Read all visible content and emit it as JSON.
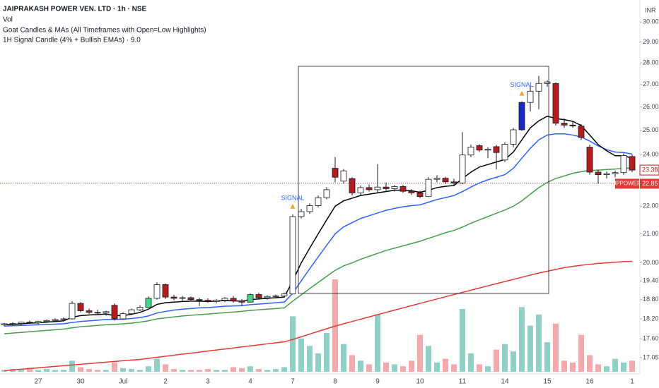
{
  "chart_data": {
    "type": "candlestick",
    "title": "JAIPRAKASH POWER VEN. LTD · 1h · NSE",
    "indicators": [
      "Vol",
      "Goat Candles & MAs (All Timeframes with Open=Low Highlights)",
      "1H Signal Candle (4% + Bullish EMAs) · 9.0"
    ],
    "currency": "INR",
    "categories": [
      null,
      null,
      null,
      null,
      "27",
      null,
      null,
      null,
      null,
      "30",
      null,
      null,
      null,
      null,
      "Jul",
      null,
      null,
      null,
      null,
      "2",
      null,
      null,
      null,
      null,
      "3",
      null,
      null,
      null,
      null,
      "4",
      null,
      null,
      null,
      null,
      "7",
      null,
      null,
      null,
      null,
      "8",
      null,
      null,
      null,
      null,
      "9",
      null,
      null,
      null,
      null,
      "10",
      null,
      null,
      null,
      null,
      "11",
      null,
      null,
      null,
      null,
      "14",
      null,
      null,
      null,
      null,
      "15",
      null,
      null,
      null,
      null,
      "16",
      null,
      null,
      null,
      null,
      "1"
    ],
    "open": [
      18.02,
      18.05,
      18.06,
      18.1,
      18.08,
      18.12,
      18.15,
      18.18,
      18.2,
      18.68,
      18.45,
      18.4,
      18.38,
      18.62,
      18.2,
      18.36,
      18.48,
      18.56,
      18.84,
      19.28,
      18.88,
      18.84,
      18.86,
      18.8,
      18.78,
      18.74,
      18.78,
      18.84,
      18.76,
      18.72,
      18.96,
      18.86,
      18.9,
      18.92,
      18.98,
      21.62,
      21.8,
      22.02,
      22.32,
      23.45,
      22.95,
      23.05,
      22.5,
      22.7,
      22.62,
      22.72,
      22.66,
      22.74,
      22.56,
      22.5,
      22.36,
      23.02,
      23.06,
      22.92,
      22.88,
      23.98,
      24.36,
      24.18,
      24.32,
      23.78,
      24.42,
      25.02,
      26.2,
      26.7,
      27.05,
      27.05,
      25.3,
      25.22,
      25.18,
      24.3,
      23.3,
      23.2,
      23.24,
      23.28,
      23.92
    ],
    "high": [
      18.08,
      18.1,
      18.12,
      18.15,
      18.14,
      18.18,
      18.22,
      18.25,
      18.75,
      18.72,
      18.52,
      18.48,
      18.45,
      18.68,
      18.4,
      18.52,
      18.62,
      18.9,
      19.35,
      19.32,
      18.95,
      18.92,
      18.9,
      18.86,
      18.84,
      18.82,
      18.88,
      18.92,
      18.82,
      19.0,
      19.02,
      18.94,
      18.96,
      19.02,
      21.7,
      21.9,
      22.1,
      22.4,
      22.72,
      23.9,
      23.42,
      23.1,
      22.78,
      22.82,
      23.62,
      22.9,
      22.8,
      22.8,
      22.64,
      22.58,
      23.1,
      23.18,
      23.12,
      23.04,
      24.92,
      24.4,
      24.42,
      24.3,
      24.4,
      24.5,
      25.1,
      26.25,
      26.9,
      27.4,
      27.2,
      27.1,
      25.5,
      25.4,
      25.26,
      24.4,
      23.4,
      23.32,
      23.36,
      24.05,
      24.0
    ],
    "low": [
      17.98,
      18.0,
      18.02,
      18.05,
      18.04,
      18.08,
      18.1,
      18.12,
      18.18,
      18.4,
      18.35,
      18.32,
      18.3,
      18.15,
      18.18,
      18.32,
      18.44,
      18.56,
      18.8,
      18.82,
      18.78,
      18.76,
      18.74,
      18.6,
      18.7,
      18.68,
      18.72,
      18.7,
      18.6,
      18.72,
      18.8,
      18.8,
      18.84,
      18.86,
      18.96,
      21.55,
      21.72,
      21.95,
      22.25,
      22.9,
      22.85,
      22.4,
      22.38,
      22.55,
      22.52,
      22.58,
      22.55,
      22.5,
      22.42,
      22.3,
      22.34,
      22.9,
      22.84,
      22.78,
      22.84,
      23.9,
      24.1,
      23.85,
      23.4,
      23.7,
      24.3,
      24.98,
      25.8,
      25.9,
      26.9,
      25.2,
      25.1,
      25.1,
      24.6,
      23.2,
      22.85,
      23.05,
      23.1,
      23.2,
      23.3
    ],
    "close": [
      18.05,
      18.06,
      18.1,
      18.08,
      18.12,
      18.15,
      18.18,
      18.2,
      18.68,
      18.45,
      18.4,
      18.38,
      18.42,
      18.2,
      18.36,
      18.48,
      18.56,
      18.84,
      19.28,
      18.88,
      18.84,
      18.86,
      18.8,
      18.78,
      18.74,
      18.78,
      18.84,
      18.76,
      18.72,
      18.96,
      18.86,
      18.9,
      18.92,
      18.98,
      21.62,
      21.8,
      22.02,
      22.32,
      22.62,
      23.1,
      23.35,
      22.5,
      22.7,
      22.62,
      22.72,
      22.66,
      22.74,
      22.56,
      22.5,
      22.36,
      23.02,
      23.06,
      22.92,
      22.88,
      23.98,
      24.3,
      24.18,
      24.22,
      24.08,
      24.42,
      25.02,
      26.2,
      26.7,
      27.05,
      27.12,
      25.3,
      25.22,
      25.18,
      24.7,
      23.3,
      23.2,
      23.24,
      23.28,
      23.96,
      23.38
    ],
    "up_color": "#ffffff",
    "down_color": "#b71c1c",
    "wick_color": "#131722",
    "highlights": [
      {
        "candle": 17,
        "color": "#3ddc84"
      },
      {
        "candle": 29,
        "color": "#3ddc84"
      },
      {
        "candle": 61,
        "color": "#1a2bc4"
      }
    ],
    "signals": {
      "label": "SIGNAL",
      "text_color": "#2962ff",
      "marker_color": "#f5a623",
      "candles": [
        34,
        61
      ]
    },
    "lines": [
      {
        "color": "#e53935",
        "values": [
          16.68,
          16.7,
          16.72,
          16.74,
          16.76,
          16.78,
          16.8,
          16.82,
          16.84,
          16.86,
          16.88,
          16.9,
          16.92,
          16.94,
          16.96,
          16.98,
          17.0,
          17.03,
          17.06,
          17.09,
          17.12,
          17.15,
          17.18,
          17.21,
          17.24,
          17.27,
          17.3,
          17.33,
          17.36,
          17.39,
          17.42,
          17.45,
          17.48,
          17.51,
          17.58,
          17.66,
          17.74,
          17.82,
          17.9,
          17.98,
          18.05,
          18.12,
          18.19,
          18.26,
          18.33,
          18.4,
          18.47,
          18.54,
          18.61,
          18.68,
          18.75,
          18.82,
          18.89,
          18.96,
          19.03,
          19.1,
          19.17,
          19.24,
          19.31,
          19.38,
          19.45,
          19.52,
          19.59,
          19.66,
          19.72,
          19.78,
          19.84,
          19.88,
          19.92,
          19.95,
          19.98,
          20.0,
          20.02,
          20.04,
          20.05
        ]
      },
      {
        "color": "#43a047",
        "values": [
          17.75,
          17.77,
          17.79,
          17.81,
          17.83,
          17.85,
          17.87,
          17.89,
          17.93,
          17.96,
          17.98,
          18.0,
          18.02,
          18.03,
          18.05,
          18.07,
          18.1,
          18.14,
          18.2,
          18.23,
          18.26,
          18.29,
          18.31,
          18.33,
          18.35,
          18.37,
          18.39,
          18.41,
          18.43,
          18.46,
          18.48,
          18.5,
          18.52,
          18.54,
          18.75,
          18.95,
          19.15,
          19.35,
          19.55,
          19.75,
          19.9,
          20.0,
          20.12,
          20.22,
          20.32,
          20.42,
          20.5,
          20.58,
          20.66,
          20.74,
          20.84,
          20.94,
          21.04,
          21.12,
          21.24,
          21.38,
          21.5,
          21.62,
          21.74,
          21.86,
          22.0,
          22.2,
          22.45,
          22.7,
          22.9,
          23.05,
          23.15,
          23.25,
          23.32,
          23.36,
          23.38,
          23.4,
          23.42,
          23.45,
          23.46
        ]
      },
      {
        "color": "#2962ff",
        "values": [
          17.98,
          17.99,
          18.0,
          18.01,
          18.02,
          18.03,
          18.04,
          18.05,
          18.09,
          18.12,
          18.14,
          18.16,
          18.18,
          18.18,
          18.19,
          18.21,
          18.24,
          18.29,
          18.38,
          18.43,
          18.47,
          18.5,
          18.52,
          18.54,
          18.55,
          18.57,
          18.59,
          18.6,
          18.61,
          18.64,
          18.66,
          18.68,
          18.7,
          18.72,
          19.0,
          19.4,
          19.8,
          20.2,
          20.6,
          21.0,
          21.25,
          21.4,
          21.55,
          21.65,
          21.75,
          21.85,
          21.92,
          21.98,
          22.02,
          22.05,
          22.15,
          22.25,
          22.32,
          22.4,
          22.55,
          22.72,
          22.88,
          23.0,
          23.1,
          23.2,
          23.45,
          23.85,
          24.25,
          24.6,
          24.8,
          24.85,
          24.85,
          24.8,
          24.72,
          24.55,
          24.35,
          24.2,
          24.1,
          24.08,
          24.02
        ]
      },
      {
        "color": "#000000",
        "values": [
          18.02,
          18.03,
          18.05,
          18.07,
          18.08,
          18.1,
          18.12,
          18.14,
          18.25,
          18.3,
          18.32,
          18.33,
          18.35,
          18.3,
          18.3,
          18.34,
          18.4,
          18.5,
          18.65,
          18.7,
          18.72,
          18.74,
          18.75,
          18.75,
          18.74,
          18.75,
          18.77,
          18.76,
          18.75,
          18.8,
          18.82,
          18.84,
          18.86,
          18.88,
          19.4,
          20.0,
          20.5,
          21.0,
          21.5,
          22.0,
          22.2,
          22.3,
          22.4,
          22.45,
          22.5,
          22.55,
          22.6,
          22.6,
          22.58,
          22.52,
          22.6,
          22.7,
          22.75,
          22.78,
          23.05,
          23.3,
          23.5,
          23.6,
          23.7,
          23.8,
          24.1,
          24.6,
          25.1,
          25.4,
          25.6,
          25.5,
          25.45,
          25.38,
          25.2,
          24.8,
          24.4,
          24.15,
          23.95,
          23.95,
          23.85
        ]
      }
    ],
    "volume": {
      "up_color": "#8fd1c8",
      "down_color": "#f4a9a8",
      "values": [
        2,
        3,
        2,
        4,
        2,
        3,
        2,
        2,
        12,
        5,
        3,
        2,
        2,
        10,
        4,
        3,
        2,
        6,
        14,
        8,
        3,
        2,
        2,
        2,
        3,
        2,
        2,
        5,
        4,
        6,
        3,
        2,
        3,
        5,
        60,
        36,
        28,
        20,
        42,
        100,
        30,
        18,
        12,
        8,
        62,
        10,
        8,
        6,
        12,
        40,
        28,
        10,
        14,
        8,
        68,
        20,
        8,
        6,
        24,
        30,
        22,
        70,
        50,
        62,
        32,
        52,
        12,
        10,
        40,
        18,
        8,
        6,
        14,
        10,
        12
      ]
    },
    "prev_close": {
      "name": "JPPOWER",
      "value": 22.85,
      "color": "#e53935"
    },
    "log_scale": true,
    "grid": false,
    "ylim": [
      16.59,
      31.13
    ],
    "yticks": [
      {
        "value": 30,
        "label": "30.00"
      },
      {
        "value": 29,
        "label": "29.00"
      },
      {
        "value": 28,
        "label": "28.00"
      },
      {
        "value": 27,
        "label": "27.00"
      },
      {
        "value": 26,
        "label": "26.00"
      },
      {
        "value": 25,
        "label": "25.00"
      },
      {
        "value": 24,
        "label": "24.00"
      },
      {
        "value": 22,
        "label": "22.00"
      },
      {
        "value": 21,
        "label": "21.00"
      },
      {
        "value": 20,
        "label": "20.00"
      },
      {
        "value": 19.4,
        "label": "19.40"
      },
      {
        "value": 18.8,
        "label": "18.80"
      },
      {
        "value": 18.2,
        "label": "18.20"
      },
      {
        "value": 17.6,
        "label": "17.60"
      },
      17.05
    ]
  }
}
